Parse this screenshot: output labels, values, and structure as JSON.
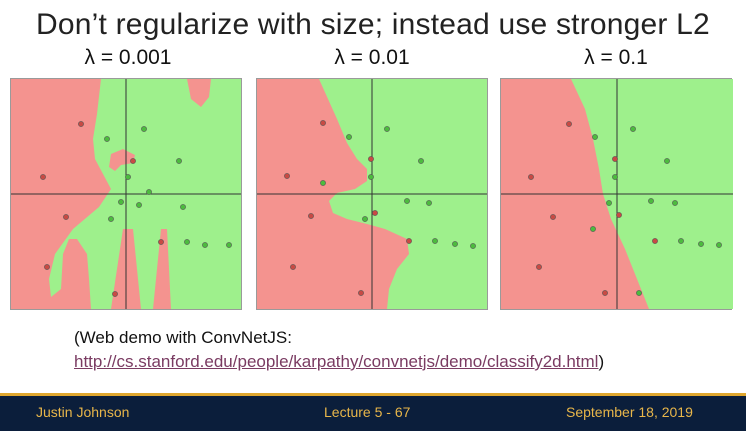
{
  "slide": {
    "title": "Don’t regularize with size; instead use stronger L2",
    "panels": [
      {
        "label": "λ = 0.001"
      },
      {
        "label": "λ = 0.01"
      },
      {
        "label": "λ = 0.1"
      }
    ],
    "note_line1": "(Web demo with ConvNetJS:",
    "note_link": "http://cs.stanford.edu/people/karpathy/convnetjs/demo/classify2d.html",
    "note_close": ")"
  },
  "footer": {
    "author": "Justin Johnson",
    "lecture": "Lecture 5 - 67",
    "date": "September 18, 2019"
  },
  "colors": {
    "red_region": "#f4938f",
    "green_region": "#9ef08c",
    "red_point": "#c84a44",
    "green_point": "#4cbb3e",
    "footer_bg": "#0b1e3b",
    "footer_text": "#e8b64a",
    "link": "#7a3b62"
  }
}
